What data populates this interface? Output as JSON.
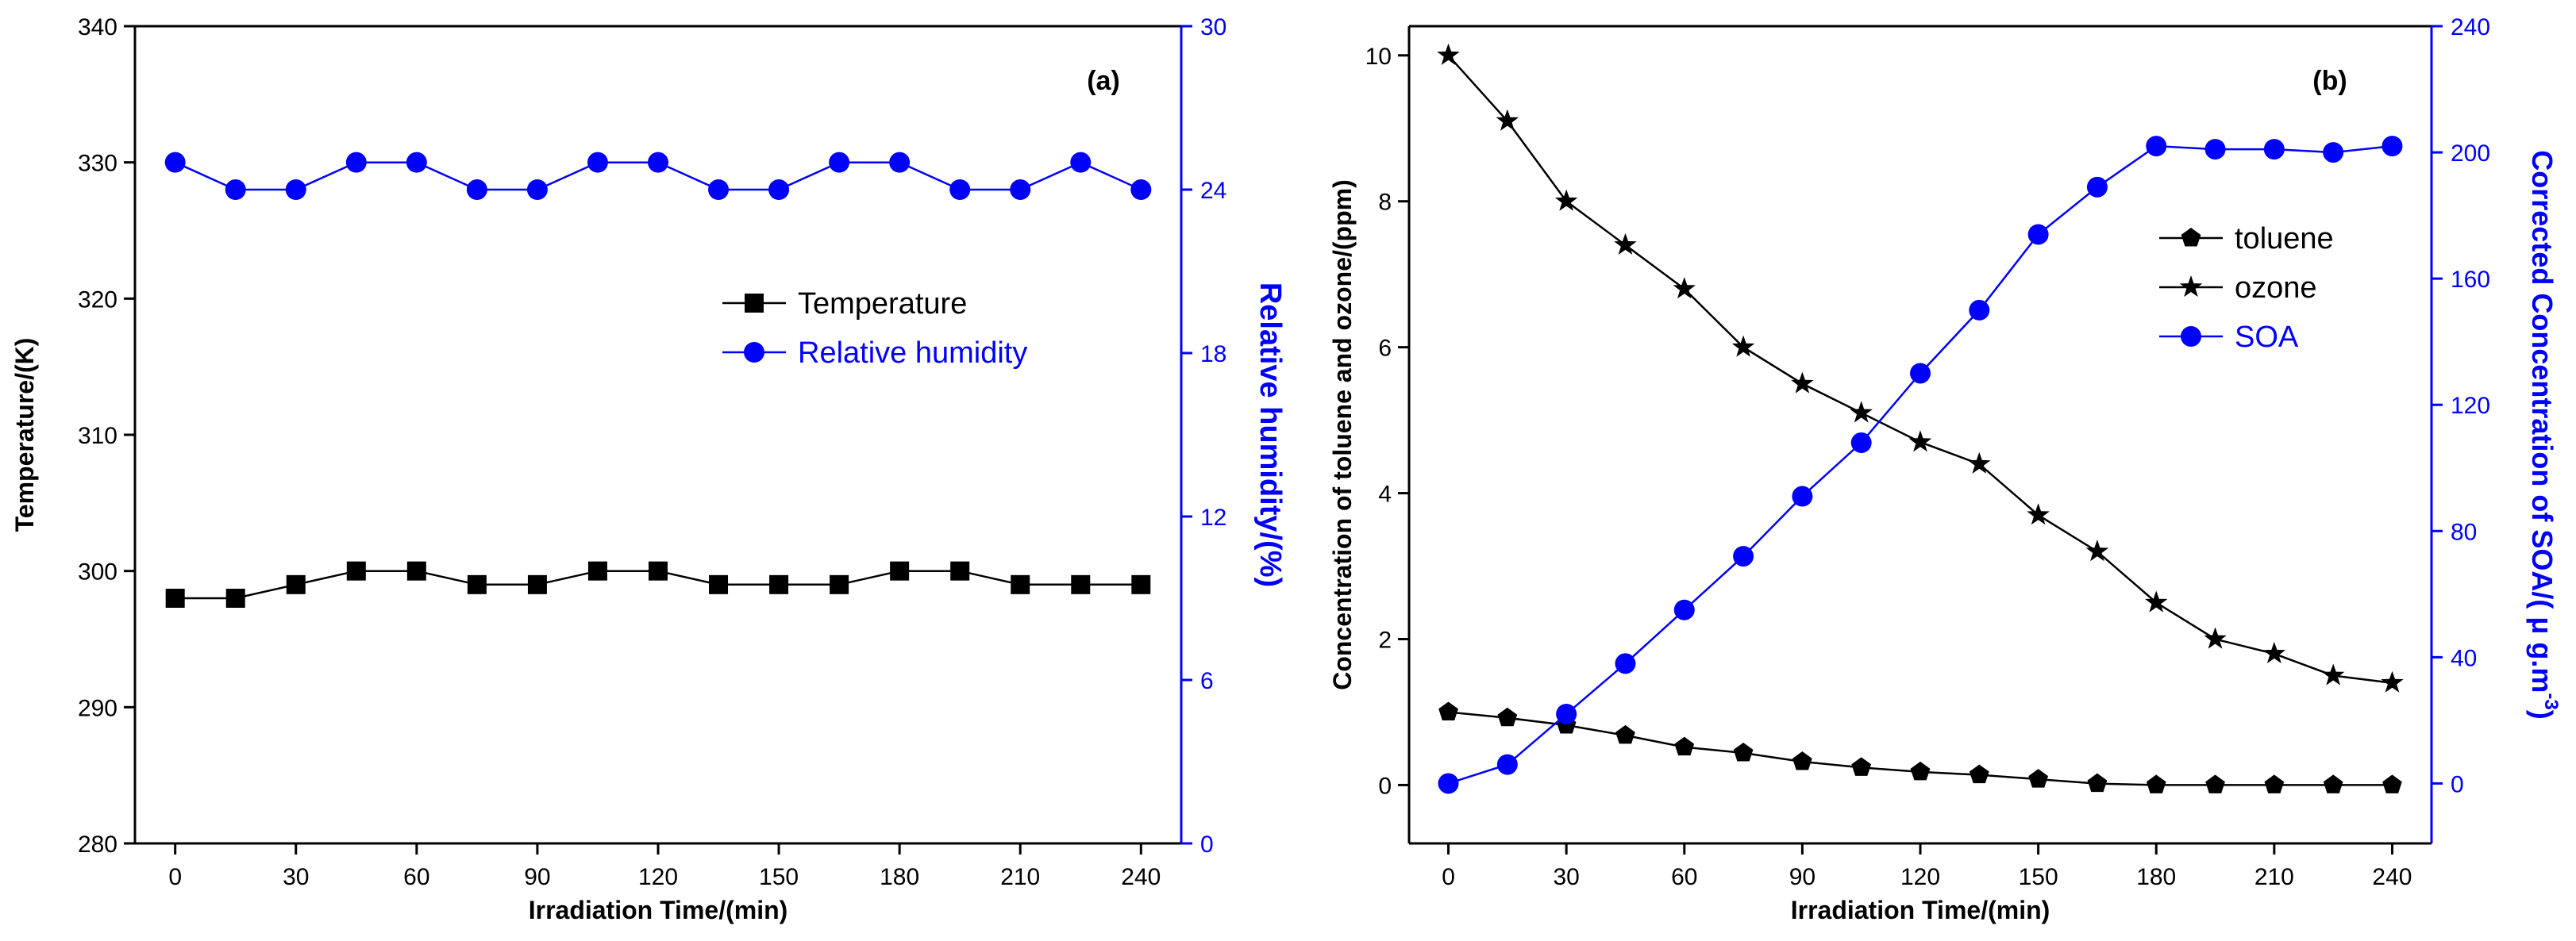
{
  "colors": {
    "black": "#000000",
    "blue": "#0000ff"
  },
  "chart_data": [
    {
      "type": "line",
      "panel_label": "(a)",
      "xlabel": "Irradiation Time/(min)",
      "ylabel_left": "Temperature/(K)",
      "ylabel_right": "Relative humidity/(%)",
      "xlim": [
        -10,
        250
      ],
      "ylim_left": [
        280,
        340
      ],
      "ylim_right": [
        0,
        30
      ],
      "x_ticks": [
        0,
        30,
        60,
        90,
        120,
        150,
        180,
        210,
        240
      ],
      "y_ticks_left": [
        280,
        290,
        300,
        310,
        320,
        330,
        340
      ],
      "y_ticks_right": [
        0,
        6,
        12,
        18,
        24,
        30
      ],
      "legend_placement": "center-right",
      "x": [
        0,
        15,
        30,
        45,
        60,
        75,
        90,
        105,
        120,
        135,
        150,
        165,
        180,
        195,
        210,
        225,
        240
      ],
      "series": [
        {
          "name": "Temperature",
          "axis": "left",
          "marker": "square",
          "color": "#000000",
          "values": [
            298,
            298,
            299,
            300,
            300,
            299,
            299,
            300,
            300,
            299,
            299,
            299,
            300,
            300,
            299,
            299,
            299
          ]
        },
        {
          "name": "Relative humidity",
          "axis": "right",
          "marker": "circle",
          "color": "#0000ff",
          "values": [
            25,
            24,
            24,
            25,
            25,
            24,
            24,
            25,
            25,
            24,
            24,
            25,
            25,
            24,
            24,
            25,
            24
          ]
        }
      ]
    },
    {
      "type": "line",
      "panel_label": "(b)",
      "xlabel": "Irradiation Time/(min)",
      "ylabel_left": "Concentration of toluene and ozone/(ppm)",
      "ylabel_right_line1": "Corrected  Concentration of SOA/( μ g.m",
      "ylabel_right_sup": "-3",
      "ylabel_right_close": ")",
      "xlim": [
        -10,
        250
      ],
      "ylim_left": [
        -0.8,
        10.4
      ],
      "ylim_right": [
        -19,
        240
      ],
      "x_ticks": [
        0,
        30,
        60,
        90,
        120,
        150,
        180,
        210,
        240
      ],
      "y_ticks_left": [
        0,
        2,
        4,
        6,
        8,
        10
      ],
      "y_ticks_right": [
        0,
        40,
        80,
        120,
        160,
        200,
        240
      ],
      "legend_placement": "center-right",
      "x": [
        0,
        15,
        30,
        45,
        60,
        75,
        90,
        105,
        120,
        135,
        150,
        165,
        180,
        195,
        210,
        225,
        240
      ],
      "series": [
        {
          "name": "toluene",
          "axis": "left",
          "marker": "pentagon",
          "color": "#000000",
          "values": [
            1.0,
            0.92,
            0.82,
            0.68,
            0.52,
            0.44,
            0.32,
            0.24,
            0.18,
            0.14,
            0.08,
            0.02,
            0.0,
            0.0,
            0.0,
            0.0,
            0.0
          ]
        },
        {
          "name": "ozone",
          "axis": "left",
          "marker": "star",
          "color": "#000000",
          "values": [
            10.0,
            9.1,
            8.0,
            7.4,
            6.8,
            6.0,
            5.5,
            5.1,
            4.7,
            4.4,
            3.7,
            3.2,
            2.5,
            2.0,
            1.8,
            1.5,
            1.4
          ]
        },
        {
          "name": "SOA",
          "axis": "right",
          "marker": "circle",
          "color": "#0000ff",
          "values": [
            0,
            6,
            22,
            38,
            55,
            72,
            91,
            108,
            130,
            150,
            174,
            189,
            202,
            201,
            201,
            200,
            202
          ]
        }
      ]
    }
  ]
}
